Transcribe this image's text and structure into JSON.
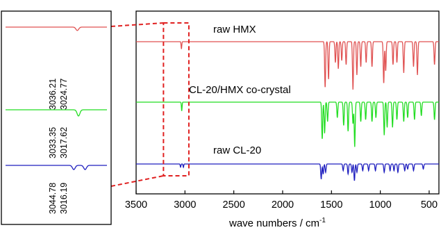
{
  "chart_data": {
    "type": "line",
    "xlabel": "wave numbers / cm",
    "xlabel_superscript": "-1",
    "xlim": [
      3500,
      400
    ],
    "x_direction": "reversed",
    "xticks": [
      3500,
      3000,
      2500,
      2000,
      1500,
      1000,
      500
    ],
    "xtick_labels": [
      "3500",
      "3000",
      "2500",
      "2000",
      "1500",
      "1000",
      "500"
    ],
    "y_axis": "none",
    "grid": false,
    "highlight_box_x": [
      3220,
      2960
    ],
    "series": [
      {
        "name": "raw HMX",
        "color": "#e05252",
        "offset": 3,
        "peaks": [
          {
            "x": 3036,
            "depth": 0.35
          },
          {
            "x": 1565,
            "depth": 2.2
          },
          {
            "x": 1530,
            "depth": 1.8
          },
          {
            "x": 1460,
            "depth": 1.0
          },
          {
            "x": 1430,
            "depth": 1.3
          },
          {
            "x": 1395,
            "depth": 0.9
          },
          {
            "x": 1350,
            "depth": 1.1
          },
          {
            "x": 1280,
            "depth": 2.3
          },
          {
            "x": 1240,
            "depth": 1.6
          },
          {
            "x": 1200,
            "depth": 1.2
          },
          {
            "x": 1145,
            "depth": 1.0
          },
          {
            "x": 1085,
            "depth": 1.2
          },
          {
            "x": 965,
            "depth": 2.0
          },
          {
            "x": 945,
            "depth": 1.4
          },
          {
            "x": 870,
            "depth": 1.1
          },
          {
            "x": 830,
            "depth": 1.0
          },
          {
            "x": 760,
            "depth": 1.5
          },
          {
            "x": 660,
            "depth": 1.2
          },
          {
            "x": 620,
            "depth": 1.6
          },
          {
            "x": 445,
            "depth": 1.1
          }
        ]
      },
      {
        "name": "CL-20/HMX co-crystal",
        "color": "#22dd22",
        "offset": 2,
        "peaks": [
          {
            "x": 3033,
            "depth": 0.45
          },
          {
            "x": 1595,
            "depth": 1.9
          },
          {
            "x": 1570,
            "depth": 1.6
          },
          {
            "x": 1540,
            "depth": 1.0
          },
          {
            "x": 1440,
            "depth": 0.8
          },
          {
            "x": 1375,
            "depth": 1.2
          },
          {
            "x": 1330,
            "depth": 1.5
          },
          {
            "x": 1280,
            "depth": 1.1
          },
          {
            "x": 1262,
            "depth": 2.3
          },
          {
            "x": 1200,
            "depth": 1.0
          },
          {
            "x": 1150,
            "depth": 0.9
          },
          {
            "x": 1085,
            "depth": 1.0
          },
          {
            "x": 1045,
            "depth": 0.8
          },
          {
            "x": 960,
            "depth": 1.7
          },
          {
            "x": 930,
            "depth": 1.3
          },
          {
            "x": 875,
            "depth": 1.3
          },
          {
            "x": 830,
            "depth": 0.9
          },
          {
            "x": 760,
            "depth": 1.0
          },
          {
            "x": 720,
            "depth": 0.8
          },
          {
            "x": 650,
            "depth": 0.9
          },
          {
            "x": 580,
            "depth": 0.7
          },
          {
            "x": 445,
            "depth": 0.9
          }
        ]
      },
      {
        "name": "raw CL-20",
        "color": "#1f1fbf",
        "offset": 1,
        "peaks": [
          {
            "x": 3045,
            "depth": 0.2
          },
          {
            "x": 3016,
            "depth": 0.2
          },
          {
            "x": 1605,
            "depth": 0.9
          },
          {
            "x": 1585,
            "depth": 0.6
          },
          {
            "x": 1560,
            "depth": 0.5
          },
          {
            "x": 1380,
            "depth": 0.4
          },
          {
            "x": 1330,
            "depth": 0.6
          },
          {
            "x": 1290,
            "depth": 0.5
          },
          {
            "x": 1265,
            "depth": 1.0
          },
          {
            "x": 1240,
            "depth": 0.5
          },
          {
            "x": 1180,
            "depth": 0.4
          },
          {
            "x": 1120,
            "depth": 0.4
          },
          {
            "x": 1050,
            "depth": 0.4
          },
          {
            "x": 960,
            "depth": 0.5
          },
          {
            "x": 900,
            "depth": 0.4
          },
          {
            "x": 860,
            "depth": 0.4
          },
          {
            "x": 820,
            "depth": 0.5
          },
          {
            "x": 750,
            "depth": 0.4
          },
          {
            "x": 720,
            "depth": 0.3
          },
          {
            "x": 660,
            "depth": 0.4
          },
          {
            "x": 560,
            "depth": 0.3
          }
        ]
      }
    ],
    "inset": {
      "x_range": [
        3220,
        2960
      ],
      "traces": [
        {
          "series": "raw HMX",
          "color": "#e05252",
          "peak_labels": [
            "3036.21",
            "3024.77"
          ]
        },
        {
          "series": "CL-20/HMX co-crystal",
          "color": "#22dd22",
          "peak_labels": [
            "3033.35",
            "3017.62"
          ]
        },
        {
          "series": "raw CL-20",
          "color": "#1f1fbf",
          "peak_labels": [
            "3044.78",
            "3016.19"
          ]
        }
      ]
    }
  }
}
